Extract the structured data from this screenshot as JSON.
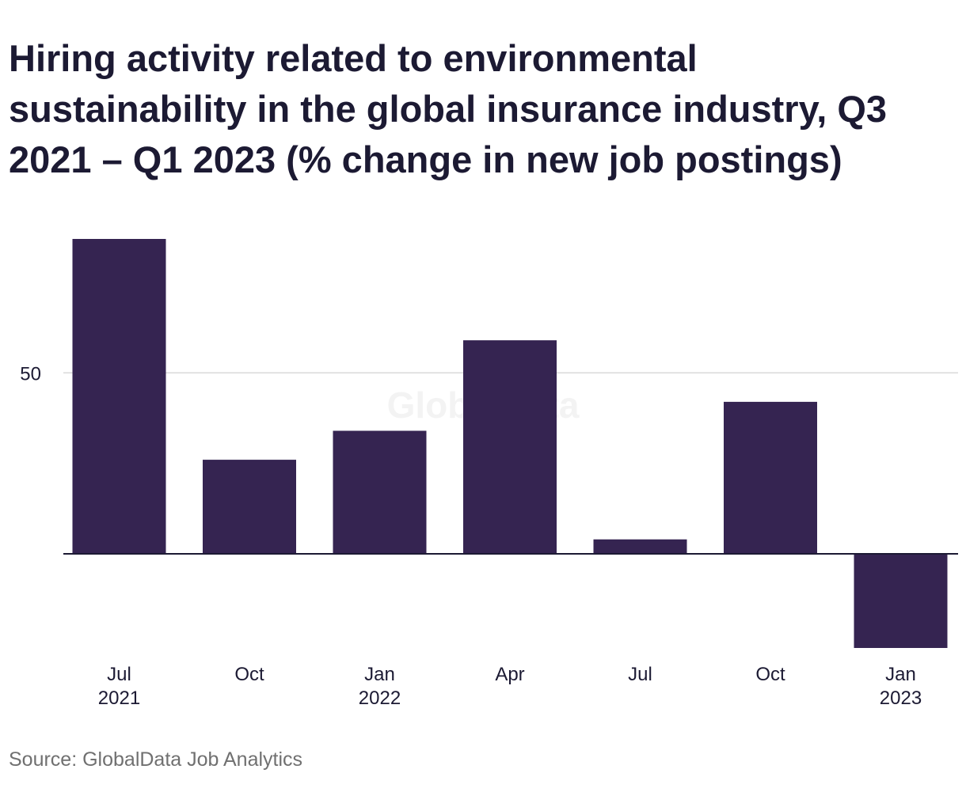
{
  "title": "Hiring activity related to environmental sustainability in the global insurance industry, Q3 2021 – Q1 2023 (% change in new job postings)",
  "source": "Source: GlobalData Job Analytics",
  "watermark": "GlobalData",
  "colors": {
    "bar": "#352451",
    "title": "#1c1a33",
    "grid": "#d9d9d9",
    "baseline": "#1c1a33",
    "tick_text": "#1c1a33",
    "source_text": "#707070",
    "watermark": "#f3f3f3"
  },
  "chart_data": {
    "type": "bar",
    "categories": [
      [
        "Jul",
        "2021"
      ],
      [
        "Oct",
        ""
      ],
      [
        "Jan",
        "2022"
      ],
      [
        "Apr",
        ""
      ],
      [
        "Jul",
        ""
      ],
      [
        "Oct",
        ""
      ],
      [
        "Jan",
        "2023"
      ]
    ],
    "values": [
      87,
      26,
      34,
      59,
      4,
      42,
      -26
    ],
    "ylim": [
      -26,
      87
    ],
    "yticks": [
      50
    ],
    "grid": true,
    "xlabel": "",
    "ylabel": ""
  }
}
